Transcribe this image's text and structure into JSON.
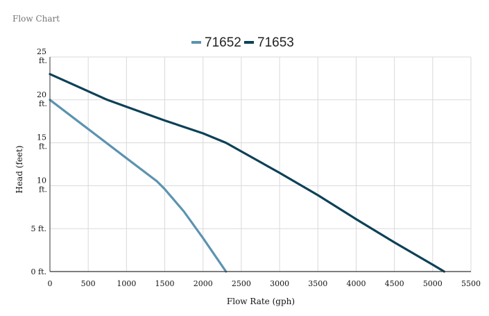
{
  "section_title": "Flow Chart",
  "colors": {
    "series_71652": "#5b93b0",
    "series_71653": "#0d4157",
    "grid": "#d9d9d9",
    "axis": "#333333"
  },
  "chart_data": {
    "type": "line",
    "title": "",
    "xlabel": "Flow Rate (gph)",
    "ylabel": "Head (feet)",
    "xlim": [
      0,
      5500
    ],
    "ylim": [
      0,
      25
    ],
    "x_ticks": [
      0,
      500,
      1000,
      1500,
      2000,
      2500,
      3000,
      3500,
      4000,
      4500,
      5000,
      5500
    ],
    "x_tick_labels": [
      "0",
      "500",
      "1000",
      "1500",
      "2000",
      "2500",
      "3000",
      "3500",
      "4000",
      "4500",
      "5000",
      "5500"
    ],
    "y_ticks": [
      0,
      5,
      10,
      15,
      20,
      25
    ],
    "y_tick_labels": [
      {
        "num": "0 ft.",
        "unit": ""
      },
      {
        "num": "5 ft.",
        "unit": ""
      },
      {
        "num": "10",
        "unit": "ft."
      },
      {
        "num": "15",
        "unit": "ft."
      },
      {
        "num": "20",
        "unit": "ft."
      },
      {
        "num": "25",
        "unit": "ft."
      }
    ],
    "grid": true,
    "legend_position": "top-center",
    "series": [
      {
        "name": "71652",
        "color": "#5b93b0",
        "points": [
          [
            0,
            20
          ],
          [
            500,
            16.6
          ],
          [
            1000,
            13.2
          ],
          [
            1400,
            10.5
          ],
          [
            1500,
            9.6
          ],
          [
            1750,
            7
          ],
          [
            2000,
            3.9
          ],
          [
            2300,
            0
          ]
        ]
      },
      {
        "name": "71653",
        "color": "#0d4157",
        "points": [
          [
            0,
            23
          ],
          [
            500,
            21
          ],
          [
            750,
            20
          ],
          [
            1000,
            19.2
          ],
          [
            1500,
            17.6
          ],
          [
            2000,
            16.1
          ],
          [
            2300,
            15
          ],
          [
            2500,
            14
          ],
          [
            3000,
            11.5
          ],
          [
            3500,
            8.9
          ],
          [
            4000,
            6.1
          ],
          [
            4500,
            3.4
          ],
          [
            5000,
            0.8
          ],
          [
            5150,
            0
          ]
        ]
      }
    ]
  }
}
